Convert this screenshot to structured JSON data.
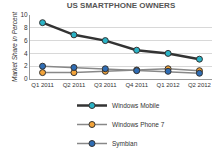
{
  "chart_data": {
    "type": "line",
    "title": "US SMARTPHONE OWNERS",
    "y_label": "Market Share in Percent",
    "categories": [
      "Q1 2011",
      "Q2 2011",
      "Q3 2011",
      "Q4 2011",
      "Q1 2012",
      "Q2 2012"
    ],
    "series": [
      {
        "name": "Windows Mobile",
        "color": "#2ab3c6",
        "values": [
          8.8,
          6.9,
          6.0,
          4.5,
          4.0,
          3.1
        ]
      },
      {
        "name": "Windows Phone 7",
        "color": "#f2a33a",
        "values": [
          1.0,
          1.0,
          1.2,
          1.4,
          1.6,
          1.3
        ]
      },
      {
        "name": "Symbian",
        "color": "#2f6db5",
        "values": [
          2.0,
          1.8,
          1.6,
          1.3,
          1.2,
          0.9
        ]
      }
    ],
    "ylim": [
      0,
      10
    ],
    "yticks": [
      0,
      2,
      4,
      6,
      8,
      10
    ],
    "grid": true,
    "legend": "bottom",
    "marker": "circle"
  }
}
